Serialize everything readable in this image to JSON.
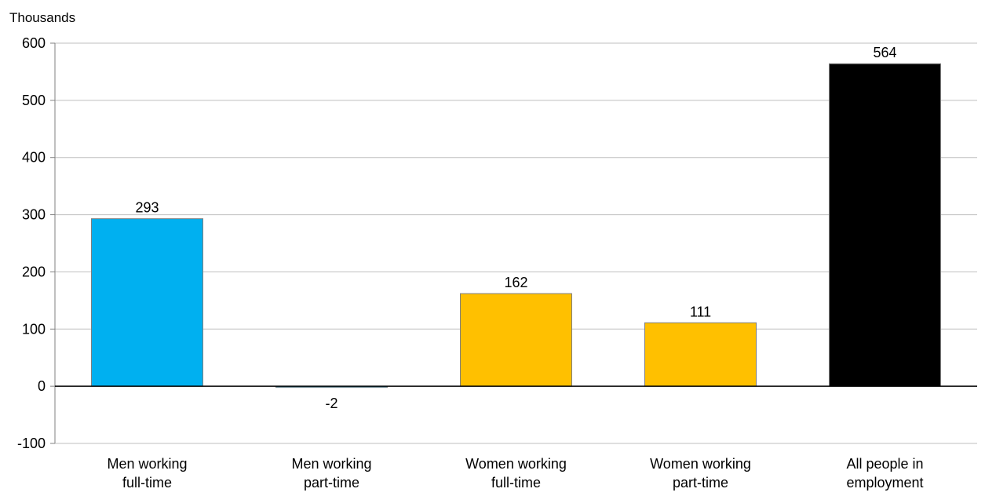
{
  "chart_data": {
    "type": "bar",
    "unit_label": "Thousands",
    "categories": [
      [
        "Men working",
        "full-time"
      ],
      [
        "Men working",
        "part-time"
      ],
      [
        "Women working",
        "full-time"
      ],
      [
        "Women working",
        "part-time"
      ],
      [
        "All people  in",
        "employment"
      ]
    ],
    "values": [
      293,
      -2,
      162,
      111,
      564
    ],
    "colors": [
      "#00b0f0",
      "#00b0f0",
      "#ffc000",
      "#ffc000",
      "#000000"
    ],
    "ylim": [
      -100,
      600
    ],
    "yticks": [
      -100,
      0,
      100,
      200,
      300,
      400,
      500,
      600
    ],
    "grid": true,
    "legend": "none"
  }
}
